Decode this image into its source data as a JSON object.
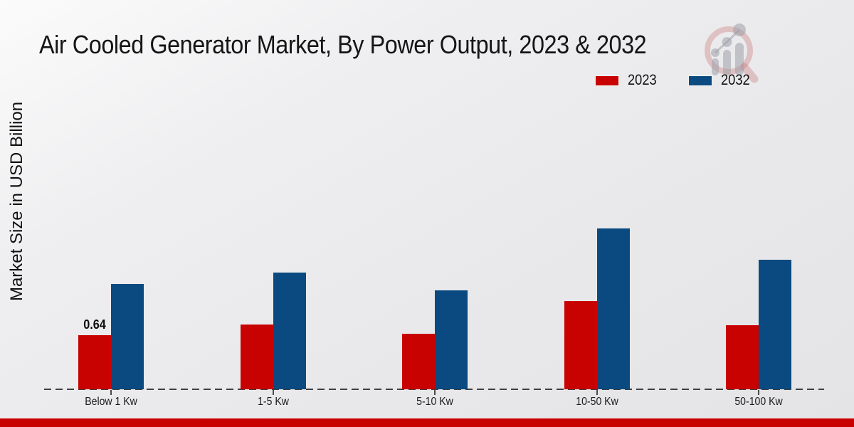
{
  "chart_data": {
    "type": "bar",
    "title": "Air Cooled Generator Market, By Power Output, 2023 & 2032",
    "xlabel": "",
    "ylabel": "Market Size in USD Billion",
    "categories": [
      "Below 1 Kw",
      "1-5 Kw",
      "5-10 Kw",
      "10-50 Kw",
      "50-100 Kw"
    ],
    "series": [
      {
        "name": "2023",
        "color": "#c80101",
        "values": [
          0.64,
          0.77,
          0.66,
          1.04,
          0.76
        ]
      },
      {
        "name": "2032",
        "color": "#0a4a80",
        "values": [
          1.25,
          1.38,
          1.17,
          1.9,
          1.53
        ]
      }
    ],
    "data_labels": [
      {
        "series": "2023",
        "category": "Below 1 Kw",
        "text": "0.64"
      }
    ],
    "ylim": [
      0,
      2.0
    ],
    "grid": false,
    "legend_position": "top-right",
    "axis_style": "dashed-baseline"
  },
  "footer": {
    "accent_color": "#c80101"
  },
  "watermark": {
    "icon": "bar-chart-magnifier-logo"
  }
}
